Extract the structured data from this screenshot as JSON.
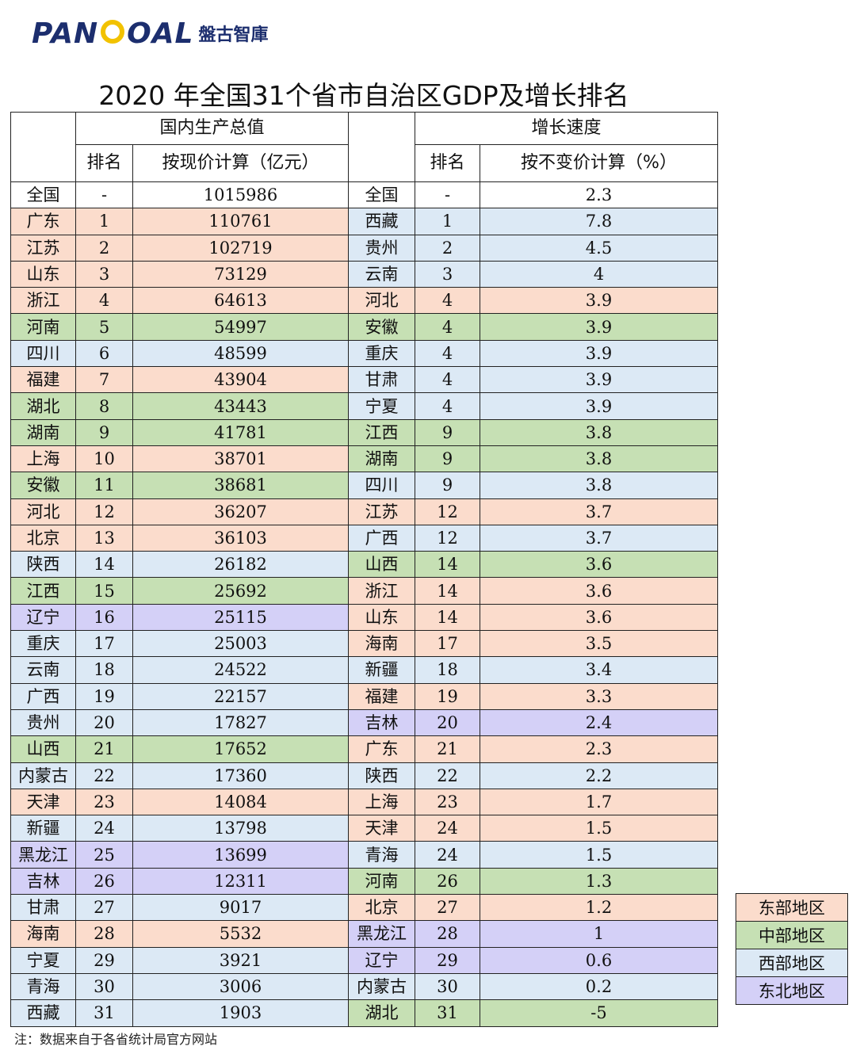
{
  "logo": {
    "pre": "PAN",
    "post": "OAL",
    "cn": "盤古智庫"
  },
  "title": "2020 年全国31个省市自治区GDP及增长排名",
  "headers": {
    "gdp_group": "国内生产总值",
    "growth_group": "增长速度",
    "rank": "排名",
    "gdp_col": "按现价计算（亿元）",
    "growth_rank": "排名",
    "growth_col": "按不变价计算（%）"
  },
  "national": {
    "name": "全国",
    "rank": "-",
    "gdp": "1015986",
    "name2": "全国",
    "rank2": "-",
    "growth": "2.3"
  },
  "rows": [
    {
      "name": "广东",
      "rank": "1",
      "gdp": "110761",
      "region": "east",
      "name2": "西藏",
      "rank2": "1",
      "growth": "7.8",
      "region2": "west"
    },
    {
      "name": "江苏",
      "rank": "2",
      "gdp": "102719",
      "region": "east",
      "name2": "贵州",
      "rank2": "2",
      "growth": "4.5",
      "region2": "west"
    },
    {
      "name": "山东",
      "rank": "3",
      "gdp": "73129",
      "region": "east",
      "name2": "云南",
      "rank2": "3",
      "growth": "4",
      "region2": "west"
    },
    {
      "name": "浙江",
      "rank": "4",
      "gdp": "64613",
      "region": "east",
      "name2": "河北",
      "rank2": "4",
      "growth": "3.9",
      "region2": "east"
    },
    {
      "name": "河南",
      "rank": "5",
      "gdp": "54997",
      "region": "central",
      "name2": "安徽",
      "rank2": "4",
      "growth": "3.9",
      "region2": "central"
    },
    {
      "name": "四川",
      "rank": "6",
      "gdp": "48599",
      "region": "west",
      "name2": "重庆",
      "rank2": "4",
      "growth": "3.9",
      "region2": "west"
    },
    {
      "name": "福建",
      "rank": "7",
      "gdp": "43904",
      "region": "east",
      "name2": "甘肃",
      "rank2": "4",
      "growth": "3.9",
      "region2": "west"
    },
    {
      "name": "湖北",
      "rank": "8",
      "gdp": "43443",
      "region": "central",
      "name2": "宁夏",
      "rank2": "4",
      "growth": "3.9",
      "region2": "west"
    },
    {
      "name": "湖南",
      "rank": "9",
      "gdp": "41781",
      "region": "central",
      "name2": "江西",
      "rank2": "9",
      "growth": "3.8",
      "region2": "central"
    },
    {
      "name": "上海",
      "rank": "10",
      "gdp": "38701",
      "region": "east",
      "name2": "湖南",
      "rank2": "9",
      "growth": "3.8",
      "region2": "central"
    },
    {
      "name": "安徽",
      "rank": "11",
      "gdp": "38681",
      "region": "central",
      "name2": "四川",
      "rank2": "9",
      "growth": "3.8",
      "region2": "west"
    },
    {
      "name": "河北",
      "rank": "12",
      "gdp": "36207",
      "region": "east",
      "name2": "江苏",
      "rank2": "12",
      "growth": "3.7",
      "region2": "east"
    },
    {
      "name": "北京",
      "rank": "13",
      "gdp": "36103",
      "region": "east",
      "name2": "广西",
      "rank2": "12",
      "growth": "3.7",
      "region2": "west"
    },
    {
      "name": "陕西",
      "rank": "14",
      "gdp": "26182",
      "region": "west",
      "name2": "山西",
      "rank2": "14",
      "growth": "3.6",
      "region2": "central"
    },
    {
      "name": "江西",
      "rank": "15",
      "gdp": "25692",
      "region": "central",
      "name2": "浙江",
      "rank2": "14",
      "growth": "3.6",
      "region2": "east"
    },
    {
      "name": "辽宁",
      "rank": "16",
      "gdp": "25115",
      "region": "ne",
      "name2": "山东",
      "rank2": "14",
      "growth": "3.6",
      "region2": "east"
    },
    {
      "name": "重庆",
      "rank": "17",
      "gdp": "25003",
      "region": "west",
      "name2": "海南",
      "rank2": "17",
      "growth": "3.5",
      "region2": "east"
    },
    {
      "name": "云南",
      "rank": "18",
      "gdp": "24522",
      "region": "west",
      "name2": "新疆",
      "rank2": "18",
      "growth": "3.4",
      "region2": "west"
    },
    {
      "name": "广西",
      "rank": "19",
      "gdp": "22157",
      "region": "west",
      "name2": "福建",
      "rank2": "19",
      "growth": "3.3",
      "region2": "east"
    },
    {
      "name": "贵州",
      "rank": "20",
      "gdp": "17827",
      "region": "west",
      "name2": "吉林",
      "rank2": "20",
      "growth": "2.4",
      "region2": "ne"
    },
    {
      "name": "山西",
      "rank": "21",
      "gdp": "17652",
      "region": "central",
      "name2": "广东",
      "rank2": "21",
      "growth": "2.3",
      "region2": "east"
    },
    {
      "name": "内蒙古",
      "rank": "22",
      "gdp": "17360",
      "region": "west",
      "name2": "陕西",
      "rank2": "22",
      "growth": "2.2",
      "region2": "west"
    },
    {
      "name": "天津",
      "rank": "23",
      "gdp": "14084",
      "region": "east",
      "name2": "上海",
      "rank2": "23",
      "growth": "1.7",
      "region2": "east"
    },
    {
      "name": "新疆",
      "rank": "24",
      "gdp": "13798",
      "region": "west",
      "name2": "天津",
      "rank2": "24",
      "growth": "1.5",
      "region2": "east"
    },
    {
      "name": "黑龙江",
      "rank": "25",
      "gdp": "13699",
      "region": "ne",
      "name2": "青海",
      "rank2": "24",
      "growth": "1.5",
      "region2": "west"
    },
    {
      "name": "吉林",
      "rank": "26",
      "gdp": "12311",
      "region": "ne",
      "name2": "河南",
      "rank2": "26",
      "growth": "1.3",
      "region2": "central"
    },
    {
      "name": "甘肃",
      "rank": "27",
      "gdp": "9017",
      "region": "west",
      "name2": "北京",
      "rank2": "27",
      "growth": "1.2",
      "region2": "east"
    },
    {
      "name": "海南",
      "rank": "28",
      "gdp": "5532",
      "region": "east",
      "name2": "黑龙江",
      "rank2": "28",
      "growth": "1",
      "region2": "ne"
    },
    {
      "name": "宁夏",
      "rank": "29",
      "gdp": "3921",
      "region": "west",
      "name2": "辽宁",
      "rank2": "29",
      "growth": "0.6",
      "region2": "ne"
    },
    {
      "name": "青海",
      "rank": "30",
      "gdp": "3006",
      "region": "west",
      "name2": "内蒙古",
      "rank2": "30",
      "growth": "0.2",
      "region2": "west"
    },
    {
      "name": "西藏",
      "rank": "31",
      "gdp": "1903",
      "region": "west",
      "name2": "湖北",
      "rank2": "31",
      "growth": "-5",
      "region2": "central"
    }
  ],
  "legend": [
    {
      "label": "东部地区",
      "region": "east"
    },
    {
      "label": "中部地区",
      "region": "central"
    },
    {
      "label": "西部地区",
      "region": "west"
    },
    {
      "label": "东北地区",
      "region": "ne"
    }
  ],
  "colors": {
    "east": "#fbdccc",
    "central": "#c6e0b4",
    "west": "#dce9f5",
    "ne": "#d4d0f7",
    "logo_blue": "#1c2e6e",
    "logo_gold": "#f2c200"
  },
  "note": "注：数据来自于各省统计局官方网站"
}
